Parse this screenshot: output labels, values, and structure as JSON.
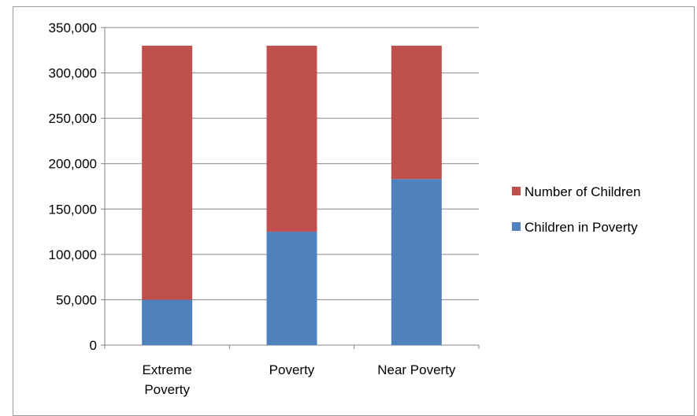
{
  "chart_data": {
    "type": "bar",
    "stacked": true,
    "categories": [
      "Extreme Poverty",
      "Poverty",
      "Near Poverty"
    ],
    "category_lines": [
      [
        "Extreme",
        "Poverty"
      ],
      [
        "Poverty"
      ],
      [
        "Near Poverty"
      ]
    ],
    "series": [
      {
        "name": "Children in Poverty",
        "color": "#4f81bd",
        "values": [
          50000,
          125000,
          183000
        ]
      },
      {
        "name": "Number of Children",
        "color": "#c0504d",
        "values": [
          280000,
          205000,
          147000
        ]
      }
    ],
    "legend_order": [
      1,
      0
    ],
    "ylim": [
      0,
      350000
    ],
    "yticks": [
      0,
      50000,
      100000,
      150000,
      200000,
      250000,
      300000,
      350000
    ],
    "ytick_labels": [
      "0",
      "50,000",
      "100,000",
      "150,000",
      "200,000",
      "250,000",
      "300,000",
      "350,000"
    ],
    "grid": true,
    "legend_position": "right",
    "title": "",
    "xlabel": "",
    "ylabel": ""
  }
}
